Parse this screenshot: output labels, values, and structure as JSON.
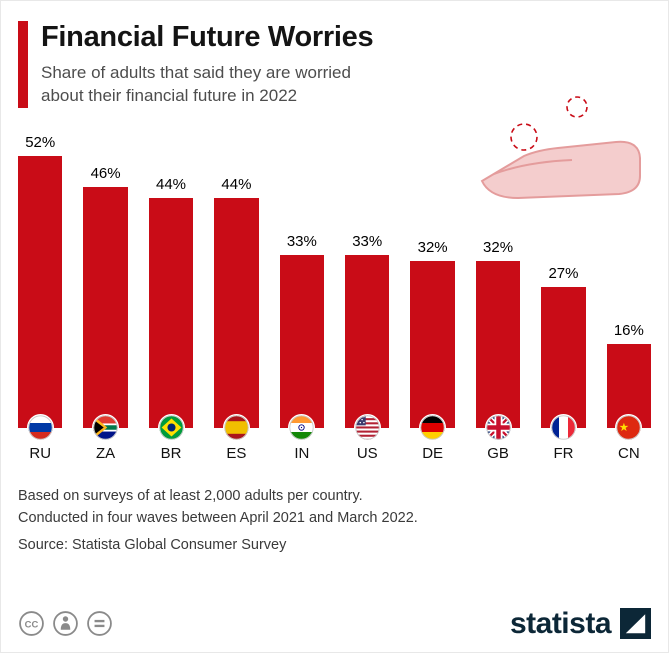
{
  "header": {
    "title": "Financial Future Worries",
    "subtitle_line1": "Share of adults that said they are worried",
    "subtitle_line2": "about their financial future in 2022"
  },
  "chart_data": {
    "type": "bar",
    "title": "Financial Future Worries",
    "subtitle": "Share of adults that said they are worried about their financial future in 2022",
    "categories": [
      "RU",
      "ZA",
      "BR",
      "ES",
      "IN",
      "US",
      "DE",
      "GB",
      "FR",
      "CN"
    ],
    "values": [
      52,
      46,
      44,
      44,
      33,
      33,
      32,
      32,
      27,
      16
    ],
    "value_labels": [
      "52%",
      "46%",
      "44%",
      "44%",
      "33%",
      "33%",
      "32%",
      "32%",
      "27%",
      "16%"
    ],
    "unit": "%",
    "xlabel": "",
    "ylabel": "",
    "ylim": [
      0,
      52
    ],
    "grid": false,
    "legend": "none",
    "bar_color": "#c90c17",
    "flag_icons": [
      "flag-ru-icon",
      "flag-za-icon",
      "flag-br-icon",
      "flag-es-icon",
      "flag-in-icon",
      "flag-us-icon",
      "flag-de-icon",
      "flag-gb-icon",
      "flag-fr-icon",
      "flag-cn-icon"
    ]
  },
  "footer": {
    "line1": "Based on surveys of at least 2,000 adults per country.",
    "line2": "Conducted in four waves between April 2021 and March 2022.",
    "line3": "Source: Statista Global Consumer Survey"
  },
  "branding": {
    "logo_text": "statista",
    "license_icons": [
      "cc-icon",
      "attribution-icon",
      "equals-icon"
    ]
  },
  "colors": {
    "accent": "#c90c17",
    "bar_red": "#c90c17",
    "brand_navy": "#0c2737",
    "subtitle_gray": "#4d4d4d"
  }
}
